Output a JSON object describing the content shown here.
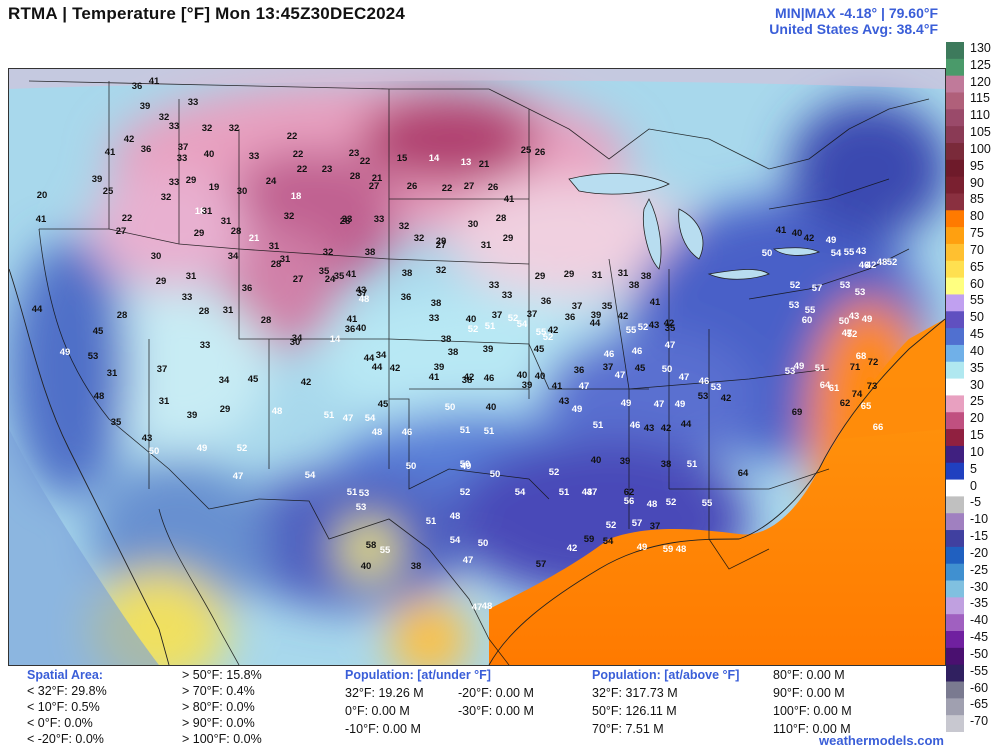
{
  "header": {
    "title": "RTMA | Temperature [°F]  Mon 13:45Z30DEC2024",
    "minmax": "MIN|MAX -4.18°  |  79.60°F",
    "us_avg": "United States Avg: 38.4°F"
  },
  "colorbar": {
    "ticks": [
      "130",
      "125",
      "120",
      "115",
      "110",
      "105",
      "100",
      "95",
      "90",
      "85",
      "80",
      "75",
      "70",
      "65",
      "60",
      "55",
      "50",
      "45",
      "40",
      "35",
      "30",
      "25",
      "20",
      "15",
      "10",
      "5",
      "0",
      "-5",
      "-10",
      "-15",
      "-20",
      "-25",
      "-30",
      "-35",
      "-40",
      "-45",
      "-50",
      "-55",
      "-60",
      "-65",
      "-70"
    ],
    "colors": [
      "#3d7a5c",
      "#4a9a6a",
      "#c07a9a",
      "#b0607a",
      "#9a4a6a",
      "#8a3a55",
      "#7a2a3a",
      "#6e1a2a",
      "#7a2030",
      "#8a3040",
      "#ff7a00",
      "#ffa010",
      "#ffc030",
      "#ffe050",
      "#ffff80",
      "#c0a0f0",
      "#6050c0",
      "#5070d0",
      "#70b0e8",
      "#b0e8f0",
      "#ffffff",
      "#e8a0c0",
      "#c05080",
      "#902040",
      "#402080",
      "#2040c0",
      "#ffffff",
      "#c0c0c0",
      "#a080c0",
      "#4040a0",
      "#2060c0",
      "#4090d0",
      "#80c0e0",
      "#c0a0e0",
      "#a060c0",
      "#7020a0",
      "#4a1070",
      "#302060",
      "#7a7a90",
      "#a0a0b0",
      "#c8c8d0"
    ]
  },
  "map_labels": [
    {
      "t": "36",
      "c": "d"
    },
    {
      "t": "41",
      "c": "d"
    },
    {
      "t": "39",
      "c": "d"
    },
    {
      "t": "33",
      "c": "d"
    },
    {
      "t": "32",
      "c": "d"
    },
    {
      "t": "33",
      "c": "d"
    },
    {
      "t": "32",
      "c": "d"
    },
    {
      "t": "42",
      "c": "d"
    },
    {
      "t": "32",
      "c": "d"
    },
    {
      "t": "41",
      "c": "d"
    },
    {
      "t": "36",
      "c": "d"
    },
    {
      "t": "37",
      "c": "d"
    },
    {
      "t": "33",
      "c": "d"
    },
    {
      "t": "40",
      "c": "d"
    },
    {
      "t": "33",
      "c": "d"
    },
    {
      "t": "22",
      "c": "d"
    },
    {
      "t": "22",
      "c": "d"
    },
    {
      "t": "23",
      "c": "d"
    },
    {
      "t": "22",
      "c": "d"
    },
    {
      "t": "15",
      "c": "d"
    },
    {
      "t": "14",
      "c": "w"
    },
    {
      "t": "13",
      "c": "w"
    },
    {
      "t": "21",
      "c": "d"
    },
    {
      "t": "25",
      "c": "d"
    },
    {
      "t": "26",
      "c": "d"
    },
    {
      "t": "39",
      "c": "d"
    },
    {
      "t": "33",
      "c": "d"
    },
    {
      "t": "29",
      "c": "d"
    },
    {
      "t": "19",
      "c": "d"
    },
    {
      "t": "30",
      "c": "d"
    },
    {
      "t": "24",
      "c": "d"
    },
    {
      "t": "22",
      "c": "d"
    },
    {
      "t": "23",
      "c": "d"
    },
    {
      "t": "28",
      "c": "d"
    },
    {
      "t": "21",
      "c": "d"
    },
    {
      "t": "27",
      "c": "d"
    },
    {
      "t": "26",
      "c": "d"
    },
    {
      "t": "22",
      "c": "d"
    },
    {
      "t": "27",
      "c": "d"
    },
    {
      "t": "26",
      "c": "d"
    },
    {
      "t": "41",
      "c": "d"
    },
    {
      "t": "20",
      "c": "d"
    },
    {
      "t": "25",
      "c": "d"
    },
    {
      "t": "32",
      "c": "d"
    },
    {
      "t": "18",
      "c": "w"
    },
    {
      "t": "31",
      "c": "d"
    },
    {
      "t": "18",
      "c": "w"
    },
    {
      "t": "32",
      "c": "d"
    },
    {
      "t": "33",
      "c": "d"
    },
    {
      "t": "33",
      "c": "d"
    },
    {
      "t": "28",
      "c": "d"
    },
    {
      "t": "32",
      "c": "d"
    },
    {
      "t": "29",
      "c": "d"
    },
    {
      "t": "30",
      "c": "d"
    },
    {
      "t": "28",
      "c": "d"
    },
    {
      "t": "41",
      "c": "d"
    },
    {
      "t": "22",
      "c": "d"
    },
    {
      "t": "27",
      "c": "d"
    },
    {
      "t": "31",
      "c": "d"
    },
    {
      "t": "29",
      "c": "d"
    },
    {
      "t": "28",
      "c": "d"
    },
    {
      "t": "21",
      "c": "w"
    },
    {
      "t": "31",
      "c": "d"
    },
    {
      "t": "32",
      "c": "d"
    },
    {
      "t": "38",
      "c": "d"
    },
    {
      "t": "32",
      "c": "d"
    },
    {
      "t": "27",
      "c": "d"
    },
    {
      "t": "31",
      "c": "d"
    },
    {
      "t": "29",
      "c": "d"
    },
    {
      "t": "30",
      "c": "d"
    },
    {
      "t": "31",
      "c": "d"
    },
    {
      "t": "34",
      "c": "d"
    },
    {
      "t": "28",
      "c": "d"
    },
    {
      "t": "31",
      "c": "d"
    },
    {
      "t": "35",
      "c": "d"
    },
    {
      "t": "35",
      "c": "d"
    },
    {
      "t": "38",
      "c": "d"
    },
    {
      "t": "32",
      "c": "d"
    },
    {
      "t": "33",
      "c": "d"
    },
    {
      "t": "29",
      "c": "d"
    },
    {
      "t": "29",
      "c": "d"
    },
    {
      "t": "31",
      "c": "d"
    },
    {
      "t": "31",
      "c": "d"
    },
    {
      "t": "38",
      "c": "d"
    },
    {
      "t": "29",
      "c": "d"
    },
    {
      "t": "33",
      "c": "d"
    },
    {
      "t": "36",
      "c": "d"
    },
    {
      "t": "27",
      "c": "d"
    },
    {
      "t": "24",
      "c": "d"
    },
    {
      "t": "37",
      "c": "d"
    },
    {
      "t": "36",
      "c": "d"
    },
    {
      "t": "38",
      "c": "d"
    },
    {
      "t": "33",
      "c": "d"
    },
    {
      "t": "36",
      "c": "d"
    },
    {
      "t": "37",
      "c": "d"
    },
    {
      "t": "35",
      "c": "d"
    },
    {
      "t": "38",
      "c": "d"
    },
    {
      "t": "41",
      "c": "d"
    },
    {
      "t": "44",
      "c": "d"
    },
    {
      "t": "28",
      "c": "d"
    },
    {
      "t": "28",
      "c": "d"
    },
    {
      "t": "31",
      "c": "d"
    },
    {
      "t": "28",
      "c": "d"
    },
    {
      "t": "41",
      "c": "d"
    },
    {
      "t": "36",
      "c": "d"
    },
    {
      "t": "33",
      "c": "d"
    },
    {
      "t": "40",
      "c": "d"
    },
    {
      "t": "37",
      "c": "d"
    },
    {
      "t": "37",
      "c": "d"
    },
    {
      "t": "36",
      "c": "d"
    },
    {
      "t": "39",
      "c": "d"
    },
    {
      "t": "42",
      "c": "d"
    },
    {
      "t": "43",
      "c": "d"
    },
    {
      "t": "42",
      "c": "d"
    },
    {
      "t": "45",
      "c": "d"
    },
    {
      "t": "33",
      "c": "d"
    },
    {
      "t": "30",
      "c": "d"
    },
    {
      "t": "34",
      "c": "d"
    },
    {
      "t": "14",
      "c": "w"
    },
    {
      "t": "40",
      "c": "d"
    },
    {
      "t": "34",
      "c": "d"
    },
    {
      "t": "38",
      "c": "d"
    },
    {
      "t": "38",
      "c": "d"
    },
    {
      "t": "39",
      "c": "d"
    },
    {
      "t": "45",
      "c": "d"
    },
    {
      "t": "46",
      "c": "w"
    },
    {
      "t": "46",
      "c": "w"
    },
    {
      "t": "47",
      "c": "w"
    },
    {
      "t": "49",
      "c": "w"
    },
    {
      "t": "53",
      "c": "d"
    },
    {
      "t": "37",
      "c": "d"
    },
    {
      "t": "44",
      "c": "d"
    },
    {
      "t": "42",
      "c": "d"
    },
    {
      "t": "41",
      "c": "d"
    },
    {
      "t": "42",
      "c": "d"
    },
    {
      "t": "46",
      "c": "d"
    },
    {
      "t": "40",
      "c": "d"
    },
    {
      "t": "40",
      "c": "d"
    },
    {
      "t": "36",
      "c": "d"
    },
    {
      "t": "37",
      "c": "d"
    },
    {
      "t": "47",
      "c": "w"
    },
    {
      "t": "45",
      "c": "d"
    },
    {
      "t": "31",
      "c": "d"
    },
    {
      "t": "34",
      "c": "d"
    },
    {
      "t": "45",
      "c": "d"
    },
    {
      "t": "42",
      "c": "d"
    },
    {
      "t": "44",
      "c": "d"
    },
    {
      "t": "39",
      "c": "d"
    },
    {
      "t": "38",
      "c": "d"
    },
    {
      "t": "39",
      "c": "d"
    },
    {
      "t": "41",
      "c": "d"
    },
    {
      "t": "47",
      "c": "w"
    },
    {
      "t": "50",
      "c": "w"
    },
    {
      "t": "47",
      "c": "w"
    },
    {
      "t": "46",
      "c": "w"
    },
    {
      "t": "53",
      "c": "w"
    },
    {
      "t": "48",
      "c": "d"
    },
    {
      "t": "31",
      "c": "d"
    },
    {
      "t": "29",
      "c": "d"
    },
    {
      "t": "48",
      "c": "w"
    },
    {
      "t": "45",
      "c": "d"
    },
    {
      "t": "50",
      "c": "w"
    },
    {
      "t": "40",
      "c": "d"
    },
    {
      "t": "43",
      "c": "d"
    },
    {
      "t": "49",
      "c": "w"
    },
    {
      "t": "49",
      "c": "w"
    },
    {
      "t": "47",
      "c": "w"
    },
    {
      "t": "49",
      "c": "w"
    },
    {
      "t": "53",
      "c": "d"
    },
    {
      "t": "42",
      "c": "d"
    },
    {
      "t": "35",
      "c": "d"
    },
    {
      "t": "39",
      "c": "d"
    },
    {
      "t": "51",
      "c": "w"
    },
    {
      "t": "54",
      "c": "w"
    },
    {
      "t": "47",
      "c": "w"
    },
    {
      "t": "48",
      "c": "w"
    },
    {
      "t": "46",
      "c": "w"
    },
    {
      "t": "51",
      "c": "w"
    },
    {
      "t": "51",
      "c": "w"
    },
    {
      "t": "51",
      "c": "w"
    },
    {
      "t": "46",
      "c": "w"
    },
    {
      "t": "43",
      "c": "d"
    },
    {
      "t": "42",
      "c": "d"
    },
    {
      "t": "44",
      "c": "d"
    },
    {
      "t": "43",
      "c": "d"
    },
    {
      "t": "50",
      "c": "w"
    },
    {
      "t": "49",
      "c": "w"
    },
    {
      "t": "52",
      "c": "w"
    },
    {
      "t": "50",
      "c": "w"
    },
    {
      "t": "50",
      "c": "w"
    },
    {
      "t": "49",
      "c": "w"
    },
    {
      "t": "50",
      "c": "w"
    },
    {
      "t": "52",
      "c": "w"
    },
    {
      "t": "40",
      "c": "d"
    },
    {
      "t": "39",
      "c": "d"
    },
    {
      "t": "38",
      "c": "d"
    },
    {
      "t": "51",
      "c": "w"
    },
    {
      "t": "64",
      "c": "d"
    },
    {
      "t": "47",
      "c": "w"
    },
    {
      "t": "54",
      "c": "w"
    },
    {
      "t": "51",
      "c": "w"
    },
    {
      "t": "53",
      "c": "w"
    },
    {
      "t": "52",
      "c": "w"
    },
    {
      "t": "54",
      "c": "w"
    },
    {
      "t": "51",
      "c": "w"
    },
    {
      "t": "47",
      "c": "w"
    },
    {
      "t": "43",
      "c": "w"
    },
    {
      "t": "62",
      "c": "d"
    },
    {
      "t": "56",
      "c": "w"
    },
    {
      "t": "48",
      "c": "w"
    },
    {
      "t": "52",
      "c": "w"
    },
    {
      "t": "55",
      "c": "w"
    },
    {
      "t": "53",
      "c": "w"
    },
    {
      "t": "48",
      "c": "w"
    },
    {
      "t": "51",
      "c": "w"
    },
    {
      "t": "54",
      "c": "w"
    },
    {
      "t": "59",
      "c": "d"
    },
    {
      "t": "54",
      "c": "d"
    },
    {
      "t": "49",
      "c": "w"
    },
    {
      "t": "48",
      "c": "w"
    },
    {
      "t": "59",
      "c": "w"
    },
    {
      "t": "58",
      "c": "d"
    },
    {
      "t": "55",
      "c": "w"
    },
    {
      "t": "50",
      "c": "w"
    },
    {
      "t": "47",
      "c": "w"
    },
    {
      "t": "57",
      "c": "d"
    },
    {
      "t": "42",
      "c": "w"
    },
    {
      "t": "52",
      "c": "w"
    },
    {
      "t": "57",
      "c": "w"
    },
    {
      "t": "37",
      "c": "d"
    },
    {
      "t": "40",
      "c": "d"
    },
    {
      "t": "38",
      "c": "d"
    },
    {
      "t": "47",
      "c": "w"
    },
    {
      "t": "48",
      "c": "w"
    },
    {
      "t": "41",
      "c": "d"
    },
    {
      "t": "43",
      "c": "d"
    },
    {
      "t": "48",
      "c": "w"
    },
    {
      "t": "52",
      "c": "w"
    },
    {
      "t": "51",
      "c": "w"
    },
    {
      "t": "52",
      "c": "w"
    },
    {
      "t": "54",
      "c": "w"
    },
    {
      "t": "55",
      "c": "w"
    },
    {
      "t": "52",
      "c": "w"
    },
    {
      "t": "42",
      "c": "d"
    },
    {
      "t": "44",
      "c": "d"
    },
    {
      "t": "55",
      "c": "w"
    },
    {
      "t": "52",
      "c": "w"
    },
    {
      "t": "35",
      "c": "d"
    },
    {
      "t": "41",
      "c": "d"
    },
    {
      "t": "40",
      "c": "d"
    },
    {
      "t": "42",
      "c": "d"
    },
    {
      "t": "49",
      "c": "w"
    },
    {
      "t": "50",
      "c": "w"
    },
    {
      "t": "54",
      "c": "w"
    },
    {
      "t": "55",
      "c": "w"
    },
    {
      "t": "43",
      "c": "w"
    },
    {
      "t": "46",
      "c": "w"
    },
    {
      "t": "42",
      "c": "w"
    },
    {
      "t": "48",
      "c": "w"
    },
    {
      "t": "52",
      "c": "w"
    },
    {
      "t": "53",
      "c": "w"
    },
    {
      "t": "55",
      "c": "w"
    },
    {
      "t": "60",
      "c": "w"
    },
    {
      "t": "50",
      "c": "w"
    },
    {
      "t": "52",
      "c": "w"
    },
    {
      "t": "57",
      "c": "w"
    },
    {
      "t": "53",
      "c": "w"
    },
    {
      "t": "53",
      "c": "w"
    },
    {
      "t": "43",
      "c": "w"
    },
    {
      "t": "49",
      "c": "w"
    },
    {
      "t": "47",
      "c": "w"
    },
    {
      "t": "52",
      "c": "w"
    },
    {
      "t": "53",
      "c": "w"
    },
    {
      "t": "49",
      "c": "w"
    },
    {
      "t": "51",
      "c": "w"
    },
    {
      "t": "61",
      "c": "w"
    },
    {
      "t": "64",
      "c": "w"
    },
    {
      "t": "62",
      "c": "d"
    },
    {
      "t": "65",
      "c": "w"
    },
    {
      "t": "66",
      "c": "w"
    },
    {
      "t": "68",
      "c": "w"
    },
    {
      "t": "72",
      "c": "d"
    },
    {
      "t": "71",
      "c": "d"
    },
    {
      "t": "73",
      "c": "d"
    },
    {
      "t": "74",
      "c": "d"
    },
    {
      "t": "69",
      "c": "d"
    }
  ],
  "footer": {
    "spatial": {
      "header": "Spatial Area:",
      "left": [
        "< 32°F: 29.8%",
        "< 10°F: 0.5%",
        "< 0°F: 0.0%",
        "< -20°F: 0.0%"
      ],
      "right": [
        "> 50°F: 15.8%",
        "> 70°F: 0.4%",
        "> 80°F: 0.0%",
        "> 90°F: 0.0%",
        "> 100°F: 0.0%"
      ]
    },
    "pop_under": {
      "header": "Population: [at/under °F]",
      "col1": [
        "32°F: 19.26 M",
        "0°F: 0.00 M",
        "-10°F: 0.00 M"
      ],
      "col2": [
        "-20°F: 0.00 M",
        "-30°F: 0.00 M"
      ]
    },
    "pop_above": {
      "header": "Population: [at/above °F]",
      "col1": [
        "32°F: 317.73 M",
        "50°F: 126.11 M",
        "70°F: 7.51 M"
      ],
      "col2": [
        "80°F: 0.00 M",
        "90°F: 0.00 M",
        "100°F: 0.00 M",
        "110°F: 0.00 M"
      ]
    },
    "credit": "weathermodels.com"
  }
}
